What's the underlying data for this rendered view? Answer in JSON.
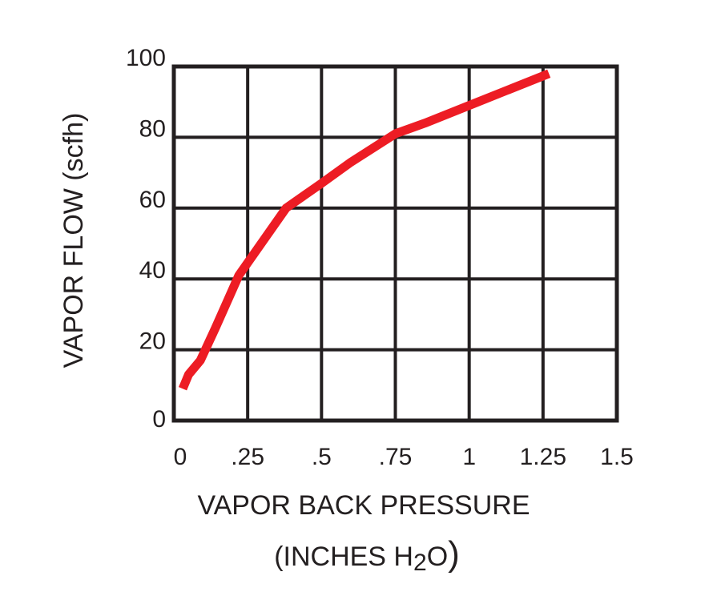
{
  "chart_data": {
    "type": "line",
    "xlabel": "VAPOR BACK PRESSURE",
    "xlabel_line2": {
      "prefix": "(INCHES H",
      "subscript": "2",
      "suffix": "O",
      "close": ")"
    },
    "ylabel": "VAPOR FLOW (scfh)",
    "xlim": [
      0,
      1.5
    ],
    "ylim": [
      0,
      100
    ],
    "x_ticks": [
      0,
      0.25,
      0.5,
      0.75,
      1,
      1.25,
      1.5
    ],
    "x_tick_labels": [
      "0",
      ".25",
      ".5",
      ".75",
      "1",
      "1.25",
      "1.5"
    ],
    "y_ticks": [
      0,
      20,
      40,
      60,
      80,
      100
    ],
    "y_tick_labels": [
      "0",
      "20",
      "40",
      "60",
      "80",
      "100"
    ],
    "grid": true,
    "legend": false,
    "series": [
      {
        "color": "#ed1c24",
        "x": [
          0.03,
          0.05,
          0.09,
          0.14,
          0.22,
          0.38,
          0.5,
          0.6,
          0.75,
          0.85,
          1.0,
          1.12,
          1.27
        ],
        "y": [
          9,
          13,
          17,
          26,
          41,
          60,
          67,
          73,
          81,
          84,
          89,
          93,
          98
        ]
      }
    ]
  }
}
